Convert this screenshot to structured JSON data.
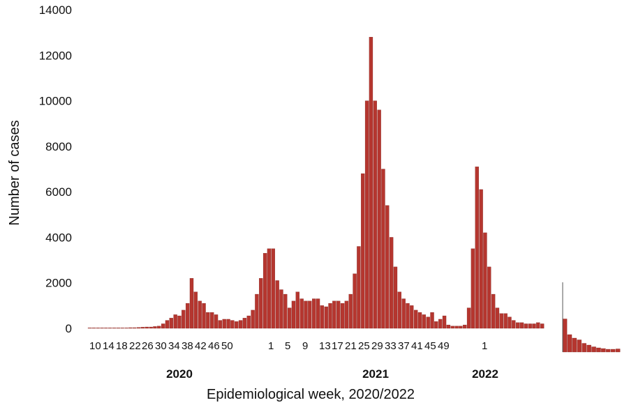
{
  "chart_data": {
    "type": "bar",
    "title": "",
    "xlabel": "Epidemiological week, 2020/2022",
    "ylabel": "Number of cases",
    "ylim": [
      0,
      14000
    ],
    "yticks": [
      0,
      2000,
      4000,
      6000,
      8000,
      10000,
      12000,
      14000
    ],
    "grid": false,
    "bar_color": "#b5362f",
    "x_tick_labels": [
      "10",
      "14",
      "18",
      "22",
      "26",
      "30",
      "34",
      "38",
      "42",
      "46",
      "50",
      "1",
      "5",
      "9",
      "13",
      "17",
      "21",
      "25",
      "29",
      "33",
      "37",
      "41",
      "45",
      "49",
      "1"
    ],
    "year_labels": [
      "2020",
      "2021",
      "2022"
    ],
    "series": [
      {
        "values": [
          20,
          20,
          20,
          20,
          20,
          20,
          20,
          20,
          20,
          20,
          30,
          30,
          40,
          50,
          60,
          60,
          80,
          100,
          200,
          350,
          450,
          600,
          550,
          800,
          1100,
          2200,
          1600,
          1200,
          1100,
          700,
          700,
          600,
          350,
          400,
          400,
          350,
          300,
          350,
          450,
          550,
          800,
          1500,
          2200,
          3300,
          3500,
          3500,
          2100,
          1700,
          1500,
          900,
          1200,
          1600,
          1300,
          1200,
          1200,
          1300,
          1300,
          1000,
          950,
          1100,
          1200,
          1200,
          1100,
          1200,
          1500,
          2400,
          3600,
          6800,
          10000,
          12800,
          10000,
          9600,
          7000,
          5400,
          4000,
          2700,
          1600,
          1300,
          1100,
          1000,
          800,
          700,
          600,
          500,
          700,
          300,
          400,
          550,
          150,
          100,
          100,
          100,
          150,
          900,
          3500,
          7100,
          6100,
          4200,
          2700,
          1500,
          900,
          650,
          650,
          500,
          350,
          250,
          250,
          200,
          200,
          200,
          250,
          200
        ]
      },
      {
        "values": [
          950,
          500,
          400,
          350,
          250,
          200,
          150,
          120,
          100,
          80,
          80,
          90
        ]
      }
    ]
  }
}
